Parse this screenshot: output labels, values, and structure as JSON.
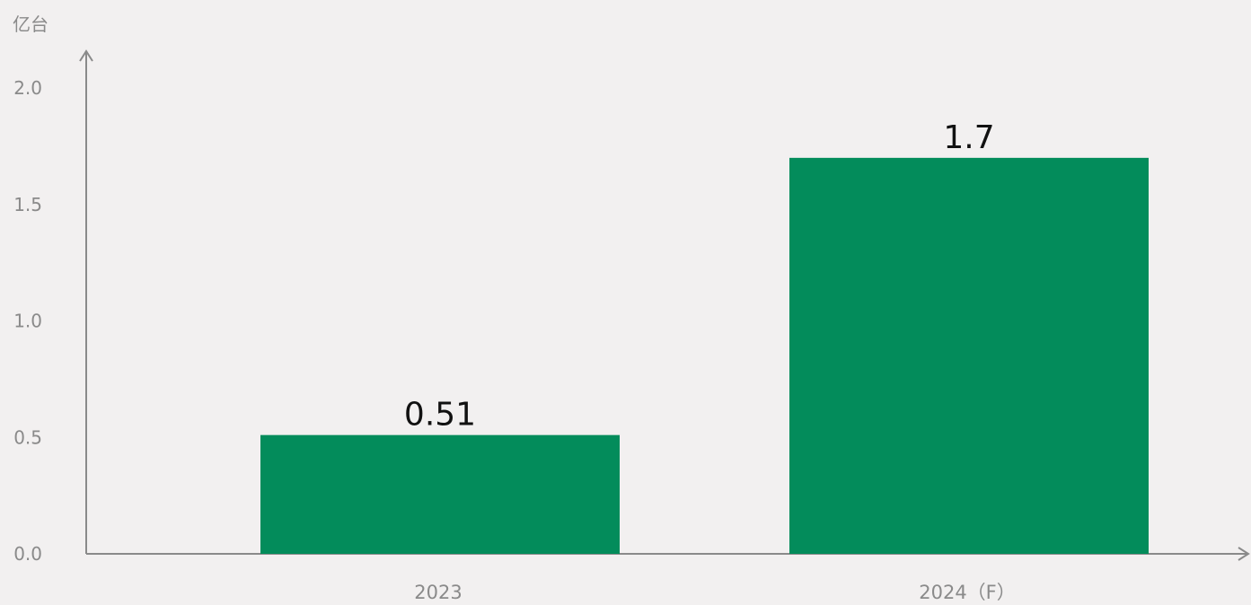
{
  "chart_data": {
    "type": "bar",
    "title": "",
    "ylabel": "亿台",
    "xlabel": "",
    "categories": [
      "2023",
      "2024（F）"
    ],
    "values": [
      0.51,
      1.7
    ],
    "value_labels": [
      "0.51",
      "1.7"
    ],
    "ylim": [
      0,
      2.0
    ],
    "yticks": [
      "0.0",
      "0.5",
      "1.0",
      "1.5",
      "2.0"
    ],
    "grid": false,
    "legend": "none",
    "colors": {
      "bar": "#038c5b",
      "axis": "#8a8a8a",
      "tick_text": "#8a8a8a",
      "value_text": "#111111",
      "background": "#f2f0f0"
    }
  }
}
